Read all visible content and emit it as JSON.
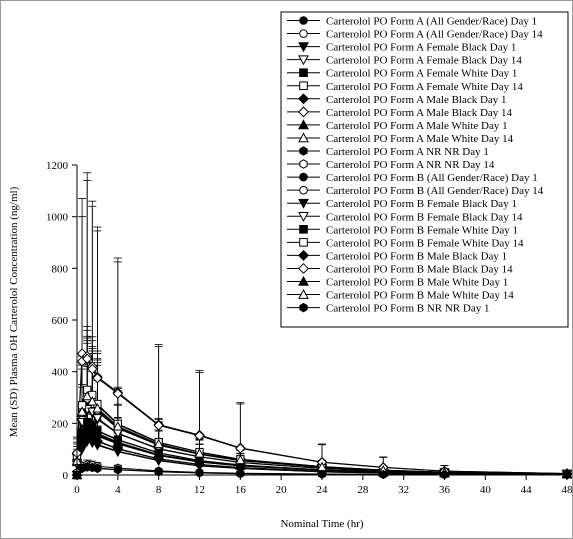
{
  "chart_data": {
    "type": "line",
    "title": "",
    "xlabel": "Nominal Time (hr)",
    "ylabel": "Mean (SD) Plasma OH Carterolol Concentration (ng/ml)",
    "xlim": [
      0,
      48
    ],
    "ylim": [
      0,
      1200
    ],
    "xticks": [
      0,
      4,
      8,
      12,
      16,
      20,
      24,
      28,
      32,
      36,
      40,
      44,
      48
    ],
    "yticks": [
      0,
      200,
      400,
      600,
      800,
      1000,
      1200
    ],
    "grid": false,
    "legend_position": "top-right",
    "series": [
      {
        "name": "Carterolol PO Form A (All Gender/Race) Day 1",
        "marker": "filled-circle",
        "x": [
          0,
          0.5,
          1,
          1.5,
          2,
          4,
          8,
          12,
          16,
          24,
          30,
          36,
          48
        ],
        "y": [
          0,
          140,
          175,
          170,
          150,
          120,
          75,
          50,
          35,
          18,
          10,
          6,
          3
        ],
        "sd": [
          0,
          90,
          110,
          100,
          90,
          70,
          45,
          30,
          20,
          12,
          8,
          5,
          3
        ]
      },
      {
        "name": "Carterolol PO Form A (All Gender/Race) Day 14",
        "marker": "open-circle",
        "x": [
          0,
          0.5,
          1,
          1.5,
          2,
          4,
          8,
          12,
          16,
          24,
          30,
          36,
          48
        ],
        "y": [
          60,
          230,
          290,
          270,
          245,
          180,
          115,
          80,
          55,
          30,
          18,
          10,
          5
        ],
        "sd": [
          40,
          180,
          220,
          200,
          180,
          130,
          80,
          55,
          40,
          22,
          14,
          8,
          4
        ]
      },
      {
        "name": "Carterolol PO Form A  Female Black  Day 1",
        "marker": "filled-triangle-down",
        "x": [
          0,
          0.5,
          1,
          1.5,
          2,
          4,
          8,
          12,
          16,
          24,
          30,
          36,
          48
        ],
        "y": [
          0,
          100,
          130,
          125,
          115,
          90,
          55,
          35,
          25,
          12,
          7,
          4,
          2
        ],
        "sd": [
          0,
          60,
          80,
          75,
          70,
          55,
          35,
          22,
          15,
          8,
          5,
          3,
          2
        ]
      },
      {
        "name": "Carterolol PO Form A  Female Black  Day 14",
        "marker": "open-triangle-down",
        "x": [
          0,
          0.5,
          1,
          1.5,
          2,
          4,
          8,
          12,
          16,
          24,
          30,
          36,
          48
        ],
        "y": [
          40,
          200,
          250,
          240,
          215,
          160,
          100,
          70,
          48,
          25,
          15,
          9,
          4
        ],
        "sd": [
          30,
          140,
          170,
          160,
          150,
          110,
          70,
          48,
          34,
          18,
          11,
          7,
          3
        ]
      },
      {
        "name": "Carterolol PO Form A  Female White  Day 1",
        "marker": "filled-square",
        "x": [
          0,
          0.5,
          1,
          1.5,
          2,
          4,
          8,
          12,
          16,
          24,
          30,
          36,
          48
        ],
        "y": [
          0,
          160,
          200,
          190,
          170,
          135,
          85,
          55,
          38,
          20,
          12,
          7,
          3
        ],
        "sd": [
          0,
          100,
          130,
          120,
          110,
          85,
          55,
          35,
          25,
          14,
          9,
          5,
          3
        ]
      },
      {
        "name": "Carterolol PO Form A  Female White  Day 14",
        "marker": "open-square",
        "x": [
          0,
          0.5,
          1,
          1.5,
          2,
          4,
          8,
          12,
          16,
          24,
          30,
          36,
          48
        ],
        "y": [
          70,
          260,
          320,
          300,
          270,
          195,
          125,
          88,
          60,
          32,
          19,
          11,
          5
        ],
        "sd": [
          50,
          200,
          240,
          220,
          200,
          140,
          90,
          62,
          44,
          24,
          15,
          9,
          4
        ]
      },
      {
        "name": "Carterolol PO Form A  Male Black  Day 1",
        "marker": "filled-diamond",
        "x": [
          0,
          0.5,
          1,
          1.5,
          2,
          4,
          8,
          12,
          16,
          24,
          30,
          36,
          48
        ],
        "y": [
          0,
          120,
          150,
          145,
          130,
          100,
          62,
          40,
          28,
          14,
          8,
          5,
          2
        ],
        "sd": [
          0,
          75,
          95,
          90,
          80,
          62,
          40,
          26,
          18,
          10,
          6,
          4,
          2
        ]
      },
      {
        "name": "Carterolol PO Form A  Male Black  Day 14",
        "marker": "open-diamond",
        "x": [
          0,
          0.5,
          1,
          1.5,
          2,
          4,
          8,
          12,
          16,
          24,
          30,
          36,
          48
        ],
        "y": [
          80,
          470,
          460,
          420,
          380,
          320,
          195,
          155,
          105,
          50,
          30,
          15,
          6
        ],
        "sd": [
          60,
          600,
          710,
          640,
          580,
          520,
          310,
          250,
          175,
          70,
          40,
          22,
          8
        ]
      },
      {
        "name": "Carterolol PO Form A  Male White  Day 1",
        "marker": "filled-triangle-up",
        "x": [
          0,
          0.5,
          1,
          1.5,
          2,
          4,
          8,
          12,
          16,
          24,
          30,
          36,
          48
        ],
        "y": [
          0,
          150,
          185,
          175,
          160,
          125,
          78,
          52,
          36,
          19,
          11,
          6,
          3
        ],
        "sd": [
          0,
          95,
          120,
          110,
          100,
          78,
          50,
          33,
          23,
          13,
          8,
          5,
          3
        ]
      },
      {
        "name": "Carterolol PO Form A  Male White  Day 14",
        "marker": "open-triangle-up",
        "x": [
          0,
          0.5,
          1,
          1.5,
          2,
          4,
          8,
          12,
          16,
          24,
          30,
          36,
          48
        ],
        "y": [
          50,
          240,
          300,
          280,
          255,
          185,
          118,
          82,
          57,
          30,
          18,
          10,
          5
        ],
        "sd": [
          35,
          190,
          230,
          210,
          190,
          135,
          85,
          58,
          42,
          22,
          14,
          8,
          4
        ]
      },
      {
        "name": "Carterolol PO Form A  NR NR  Day 1",
        "marker": "filled-hexagon",
        "x": [
          0,
          0.5,
          1,
          1.5,
          2,
          4,
          8,
          12,
          16,
          24,
          30,
          36,
          48
        ],
        "y": [
          0,
          25,
          30,
          28,
          25,
          20,
          12,
          8,
          5,
          3,
          2,
          1,
          1
        ],
        "sd": [
          0,
          10,
          12,
          11,
          10,
          8,
          5,
          3,
          2,
          1,
          1,
          1,
          1
        ]
      },
      {
        "name": "Carterolol PO Form A  NR NR  Day 14",
        "marker": "open-hexagon",
        "x": [
          0,
          0.5,
          1,
          1.5,
          2,
          4,
          8,
          12,
          16,
          24,
          30,
          36,
          48
        ],
        "y": [
          10,
          35,
          40,
          38,
          34,
          27,
          16,
          10,
          7,
          4,
          2,
          1,
          1
        ],
        "sd": [
          5,
          15,
          18,
          16,
          14,
          11,
          7,
          4,
          3,
          2,
          1,
          1,
          1
        ]
      },
      {
        "name": "Carterolol PO Form B (All Gender/Race) Day 1",
        "marker": "filled-circle",
        "x": [
          0,
          0.5,
          1,
          1.5,
          2,
          4,
          8,
          12,
          16,
          24,
          30,
          36,
          48
        ],
        "y": [
          0,
          150,
          180,
          175,
          155,
          122,
          77,
          51,
          36,
          19,
          11,
          6,
          3
        ],
        "sd": [
          0,
          95,
          115,
          105,
          95,
          72,
          47,
          31,
          21,
          12,
          8,
          5,
          3
        ]
      },
      {
        "name": "Carterolol PO Form B (All Gender/Race) Day 14",
        "marker": "open-circle",
        "x": [
          0,
          0.5,
          1,
          1.5,
          2,
          4,
          8,
          12,
          16,
          24,
          30,
          36,
          48
        ],
        "y": [
          65,
          240,
          295,
          275,
          250,
          182,
          117,
          81,
          56,
          31,
          18,
          10,
          5
        ],
        "sd": [
          45,
          185,
          225,
          205,
          185,
          132,
          82,
          56,
          41,
          22,
          14,
          8,
          4
        ]
      },
      {
        "name": "Carterolol PO Form B  Female Black  Day 1",
        "marker": "filled-triangle-down",
        "x": [
          0,
          0.5,
          1,
          1.5,
          2,
          4,
          8,
          12,
          16,
          24,
          30,
          36,
          48
        ],
        "y": [
          0,
          105,
          135,
          130,
          118,
          92,
          57,
          36,
          26,
          12,
          7,
          4,
          2
        ],
        "sd": [
          0,
          62,
          82,
          78,
          72,
          56,
          36,
          23,
          16,
          8,
          5,
          3,
          2
        ]
      },
      {
        "name": "Carterolol PO Form B  Female Black  Day 14",
        "marker": "open-triangle-down",
        "x": [
          0,
          0.5,
          1,
          1.5,
          2,
          4,
          8,
          12,
          16,
          24,
          30,
          36,
          48
        ],
        "y": [
          45,
          205,
          255,
          245,
          220,
          162,
          102,
          71,
          49,
          26,
          15,
          9,
          4
        ],
        "sd": [
          32,
          145,
          175,
          165,
          152,
          112,
          72,
          49,
          35,
          18,
          11,
          7,
          3
        ]
      },
      {
        "name": "Carterolol PO Form B  Female White  Day 1",
        "marker": "filled-square",
        "x": [
          0,
          0.5,
          1,
          1.5,
          2,
          4,
          8,
          12,
          16,
          24,
          30,
          36,
          48
        ],
        "y": [
          0,
          165,
          205,
          195,
          172,
          137,
          86,
          56,
          39,
          20,
          12,
          7,
          3
        ],
        "sd": [
          0,
          102,
          132,
          122,
          112,
          86,
          56,
          36,
          26,
          14,
          9,
          5,
          3
        ]
      },
      {
        "name": "Carterolol PO Form B  Female White  Day 14",
        "marker": "open-square",
        "x": [
          0,
          0.5,
          1,
          1.5,
          2,
          4,
          8,
          12,
          16,
          24,
          30,
          36,
          48
        ],
        "y": [
          75,
          270,
          330,
          310,
          275,
          198,
          127,
          89,
          61,
          33,
          19,
          11,
          5
        ],
        "sd": [
          52,
          205,
          245,
          225,
          205,
          142,
          92,
          63,
          45,
          24,
          15,
          9,
          4
        ]
      },
      {
        "name": "Carterolol PO Form B  Male Black  Day 1",
        "marker": "filled-diamond",
        "x": [
          0,
          0.5,
          1,
          1.5,
          2,
          4,
          8,
          12,
          16,
          24,
          30,
          36,
          48
        ],
        "y": [
          0,
          125,
          155,
          148,
          132,
          102,
          63,
          41,
          29,
          14,
          8,
          5,
          2
        ],
        "sd": [
          0,
          78,
          97,
          92,
          82,
          63,
          41,
          27,
          18,
          10,
          6,
          4,
          2
        ]
      },
      {
        "name": "Carterolol PO Form B  Male Black  Day 14",
        "marker": "open-diamond",
        "x": [
          0,
          0.5,
          1,
          1.5,
          2,
          4,
          8,
          12,
          16,
          24,
          30,
          36,
          48
        ],
        "y": [
          85,
          440,
          450,
          410,
          375,
          315,
          192,
          152,
          103,
          49,
          29,
          15,
          6
        ],
        "sd": [
          62,
          560,
          690,
          630,
          570,
          510,
          305,
          245,
          172,
          68,
          39,
          21,
          8
        ]
      },
      {
        "name": "Carterolol PO Form B  Male White  Day 1",
        "marker": "filled-triangle-up",
        "x": [
          0,
          0.5,
          1,
          1.5,
          2,
          4,
          8,
          12,
          16,
          24,
          30,
          36,
          48
        ],
        "y": [
          0,
          155,
          190,
          178,
          162,
          127,
          79,
          53,
          37,
          19,
          11,
          6,
          3
        ],
        "sd": [
          0,
          97,
          122,
          112,
          102,
          79,
          51,
          34,
          24,
          13,
          8,
          5,
          3
        ]
      },
      {
        "name": "Carterolol PO Form B  Male White  Day 14",
        "marker": "open-triangle-up",
        "x": [
          0,
          0.5,
          1,
          1.5,
          2,
          4,
          8,
          12,
          16,
          24,
          30,
          36,
          48
        ],
        "y": [
          55,
          245,
          305,
          285,
          258,
          188,
          120,
          83,
          58,
          31,
          18,
          10,
          5
        ],
        "sd": [
          37,
          192,
          232,
          212,
          192,
          137,
          86,
          59,
          43,
          22,
          14,
          8,
          4
        ]
      },
      {
        "name": "Carterolol PO Form B  NR NR  Day 1",
        "marker": "filled-hexagon",
        "x": [
          0,
          0.5,
          1,
          1.5,
          2,
          4,
          8,
          12,
          16,
          24,
          30,
          36,
          48
        ],
        "y": [
          0,
          28,
          33,
          30,
          27,
          21,
          13,
          8,
          5,
          3,
          2,
          1,
          1
        ],
        "sd": [
          0,
          11,
          13,
          12,
          11,
          8,
          5,
          3,
          2,
          1,
          1,
          1,
          1
        ]
      }
    ]
  }
}
